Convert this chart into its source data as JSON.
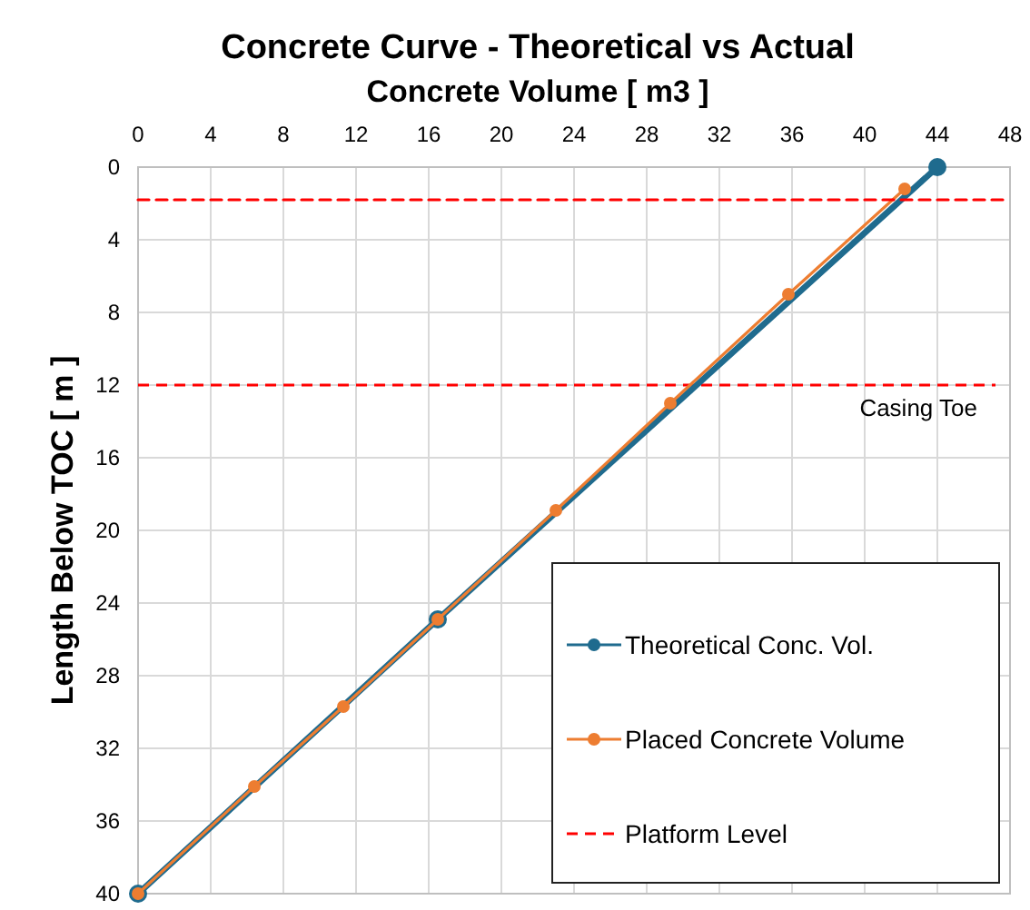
{
  "chart_data": {
    "type": "line",
    "title": "Concrete Curve - Theoretical vs Actual",
    "xlabel": "Concrete Volume [ m3 ]",
    "ylabel": "Length Below TOC [ m ]",
    "xlim": [
      0,
      48
    ],
    "xticks": [
      0,
      4,
      8,
      12,
      16,
      20,
      24,
      28,
      32,
      36,
      40,
      44,
      48
    ],
    "ylim": [
      40,
      0
    ],
    "yticks": [
      0,
      4,
      8,
      12,
      16,
      20,
      24,
      28,
      32,
      36,
      40
    ],
    "grid": true,
    "legend": "bottom right",
    "series": [
      {
        "name": "Theoretical Conc. Vol.",
        "color": "#1f6b8e",
        "x": [
          44,
          16.5,
          0
        ],
        "values": [
          0,
          24.9,
          40
        ],
        "marker": "circle"
      },
      {
        "name": "Placed Concrete Volume",
        "color": "#ed7d31",
        "x": [
          42.2,
          35.8,
          29.3,
          23.0,
          16.5,
          11.3,
          6.4,
          0
        ],
        "values": [
          1.2,
          7.0,
          13.0,
          18.9,
          24.9,
          29.7,
          34.1,
          40
        ],
        "marker": "circle"
      },
      {
        "name": "Platform Level",
        "color": "#ff0000",
        "x": [
          0,
          48
        ],
        "values": [
          1.8,
          1.8
        ],
        "marker": "none",
        "line_style": "dashed"
      }
    ],
    "ref_lines": [
      {
        "axis": "y",
        "value": 12,
        "label": "Casing Toe",
        "color": "#ff0000",
        "line_style": "dashed"
      }
    ]
  }
}
